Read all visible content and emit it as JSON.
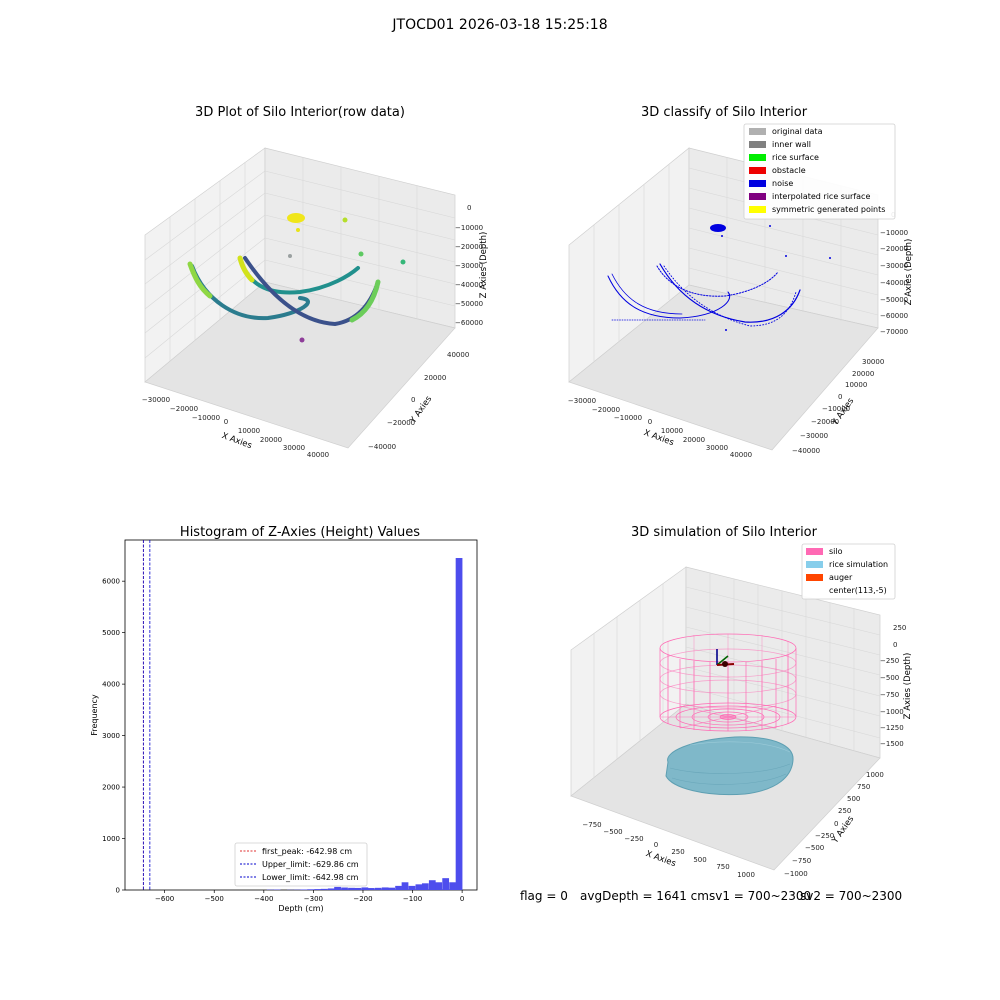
{
  "figure": {
    "suptitle": "JTOCD01 2026-03-18 15:25:18",
    "status": {
      "flag": "flag = 0",
      "avg_depth": "avgDepth = 1641 cm",
      "sv1": "sv1 = 700~2300",
      "sv2": "sv2 = 700~2300"
    }
  },
  "chart_data": [
    {
      "type": "scatter",
      "title": "3D Plot of Silo Interior(row data)",
      "xlabel": "X Axies",
      "ylabel": "Y Axies",
      "zlabel": "Z Axies (Depth)",
      "x_ticks": [
        "−30000",
        "−20000",
        "−10000",
        "0",
        "10000",
        "20000",
        "30000",
        "40000"
      ],
      "y_ticks": [
        "−40000",
        "−20000",
        "0",
        "20000",
        "40000"
      ],
      "z_ticks": [
        "−60000",
        "−50000",
        "−40000",
        "−30000",
        "−20000",
        "−10000",
        "0"
      ],
      "colormap": [
        "#3b518b",
        "#21908d",
        "#5ec962",
        "#fde725"
      ]
    },
    {
      "type": "scatter",
      "title": "3D classify of Silo Interior",
      "xlabel": "X Axies",
      "ylabel": "Y Axies",
      "zlabel": "Z Axies (Depth)",
      "x_ticks": [
        "−30000",
        "−20000",
        "−10000",
        "0",
        "10000",
        "20000",
        "30000",
        "40000"
      ],
      "y_ticks": [
        "−40000",
        "−30000",
        "−20000",
        "−10000",
        "0",
        "10000",
        "20000",
        "30000"
      ],
      "z_ticks": [
        "−70000",
        "−60000",
        "−50000",
        "−40000",
        "−30000",
        "−20000",
        "−10000",
        "0"
      ],
      "legend": [
        {
          "label": "original data",
          "color": "#b0b0b0"
        },
        {
          "label": "inner wall",
          "color": "#808080"
        },
        {
          "label": "rice surface",
          "color": "#00ee00"
        },
        {
          "label": "obstacle",
          "color": "#ee0000"
        },
        {
          "label": "noise",
          "color": "#0000e0"
        },
        {
          "label": "interpolated rice surface",
          "color": "#800080"
        },
        {
          "label": "symmetric generated points",
          "color": "#ffff00"
        }
      ]
    },
    {
      "type": "bar",
      "title": "Histogram of Z-Axies (Height) Values",
      "xlabel": "Depth (cm)",
      "ylabel": "Frequency",
      "xlim": [
        -680,
        30
      ],
      "ylim": [
        0,
        6800
      ],
      "x_ticks": [
        -600,
        -500,
        -400,
        -300,
        -200,
        -100,
        0
      ],
      "x_tick_labels": [
        "−600",
        "−500",
        "−400",
        "−300",
        "−200",
        "−100",
        "0"
      ],
      "y_ticks": [
        0,
        1000,
        2000,
        3000,
        4000,
        5000,
        6000
      ],
      "bar_color": "#4d4ded",
      "bin_width": 13.6,
      "bins": [
        {
          "x": -394,
          "v": 6
        },
        {
          "x": -380,
          "v": 8
        },
        {
          "x": -353,
          "v": 4
        },
        {
          "x": -339,
          "v": 6
        },
        {
          "x": -326,
          "v": 10
        },
        {
          "x": -312,
          "v": 14
        },
        {
          "x": -298,
          "v": 18
        },
        {
          "x": -285,
          "v": 22
        },
        {
          "x": -271,
          "v": 30
        },
        {
          "x": -258,
          "v": 60
        },
        {
          "x": -244,
          "v": 48
        },
        {
          "x": -230,
          "v": 42
        },
        {
          "x": -217,
          "v": 40
        },
        {
          "x": -203,
          "v": 50
        },
        {
          "x": -190,
          "v": 38
        },
        {
          "x": -176,
          "v": 42
        },
        {
          "x": -162,
          "v": 50
        },
        {
          "x": -149,
          "v": 45
        },
        {
          "x": -135,
          "v": 80
        },
        {
          "x": -122,
          "v": 150
        },
        {
          "x": -108,
          "v": 80
        },
        {
          "x": -94,
          "v": 110
        },
        {
          "x": -81,
          "v": 130
        },
        {
          "x": -67,
          "v": 190
        },
        {
          "x": -54,
          "v": 150
        },
        {
          "x": -40,
          "v": 230
        },
        {
          "x": -26,
          "v": 150
        },
        {
          "x": -13,
          "v": 6450
        }
      ],
      "vlines": [
        {
          "label": "first_peak: -642.98 cm",
          "x": -642.98,
          "color": "#e03030"
        },
        {
          "label": "Upper_limit: -629.86 cm",
          "x": -629.86,
          "color": "#0000cc"
        },
        {
          "label": "Lower_limit: -642.98 cm",
          "x": -642.98,
          "color": "#0000cc"
        }
      ]
    },
    {
      "type": "scatter",
      "title": "3D simulation of Silo Interior",
      "xlabel": "X Axies",
      "ylabel": "Y Axies",
      "zlabel": "Z Axies (Depth)",
      "x_ticks": [
        "−750",
        "−500",
        "−250",
        "0",
        "250",
        "500",
        "750",
        "1000"
      ],
      "y_ticks": [
        "−1000",
        "−750",
        "−500",
        "−250",
        "0",
        "250",
        "500",
        "750",
        "1000"
      ],
      "z_ticks": [
        "−1500",
        "−1250",
        "−1000",
        "−750",
        "−500",
        "−250",
        "0",
        "250"
      ],
      "legend": [
        {
          "label": "silo",
          "color": "#ff69b4"
        },
        {
          "label": "rice simulation",
          "color": "#87ceeb"
        },
        {
          "label": "auger",
          "color": "#ff4500"
        },
        {
          "label": "center(113,-5)",
          "color": "#ffffff"
        }
      ]
    }
  ]
}
